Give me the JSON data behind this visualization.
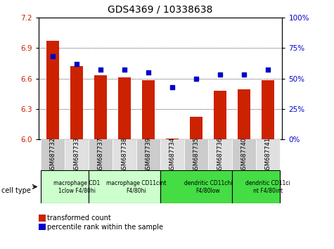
{
  "title": "GDS4369 / 10338638",
  "samples": [
    "GSM687732",
    "GSM687733",
    "GSM687737",
    "GSM687738",
    "GSM687739",
    "GSM687734",
    "GSM687735",
    "GSM687736",
    "GSM687740",
    "GSM687741"
  ],
  "transformed_count": [
    6.97,
    6.72,
    6.63,
    6.61,
    6.58,
    6.01,
    6.22,
    6.48,
    6.49,
    6.58
  ],
  "percentile_rank": [
    68,
    62,
    57,
    57,
    55,
    43,
    50,
    53,
    53,
    57
  ],
  "ymin": 6.0,
  "ymax": 7.2,
  "yticks": [
    6.0,
    6.3,
    6.6,
    6.9,
    7.2
  ],
  "y2min": 0,
  "y2max": 100,
  "y2ticks": [
    0,
    25,
    50,
    75,
    100
  ],
  "bar_color": "#cc2200",
  "dot_color": "#0000cc",
  "cell_type_groups": [
    {
      "label": "macrophage CD1\n1clow F4/80hi",
      "start": 0,
      "end": 2,
      "color": "#ccffcc"
    },
    {
      "label": "macrophage CD11cint\nF4/80hi",
      "start": 2,
      "end": 5,
      "color": "#ccffcc"
    },
    {
      "label": "dendritic CD11chi\nF4/80low",
      "start": 5,
      "end": 8,
      "color": "#44dd44"
    },
    {
      "label": "dendritic CD11ci\nnt F4/80int",
      "start": 8,
      "end": 10,
      "color": "#44dd44"
    }
  ],
  "legend_bar_label": "transformed count",
  "legend_dot_label": "percentile rank within the sample",
  "xlabel_cell_type": "cell type",
  "title_fontsize": 10,
  "tick_fontsize": 7.5,
  "bar_width": 0.55
}
